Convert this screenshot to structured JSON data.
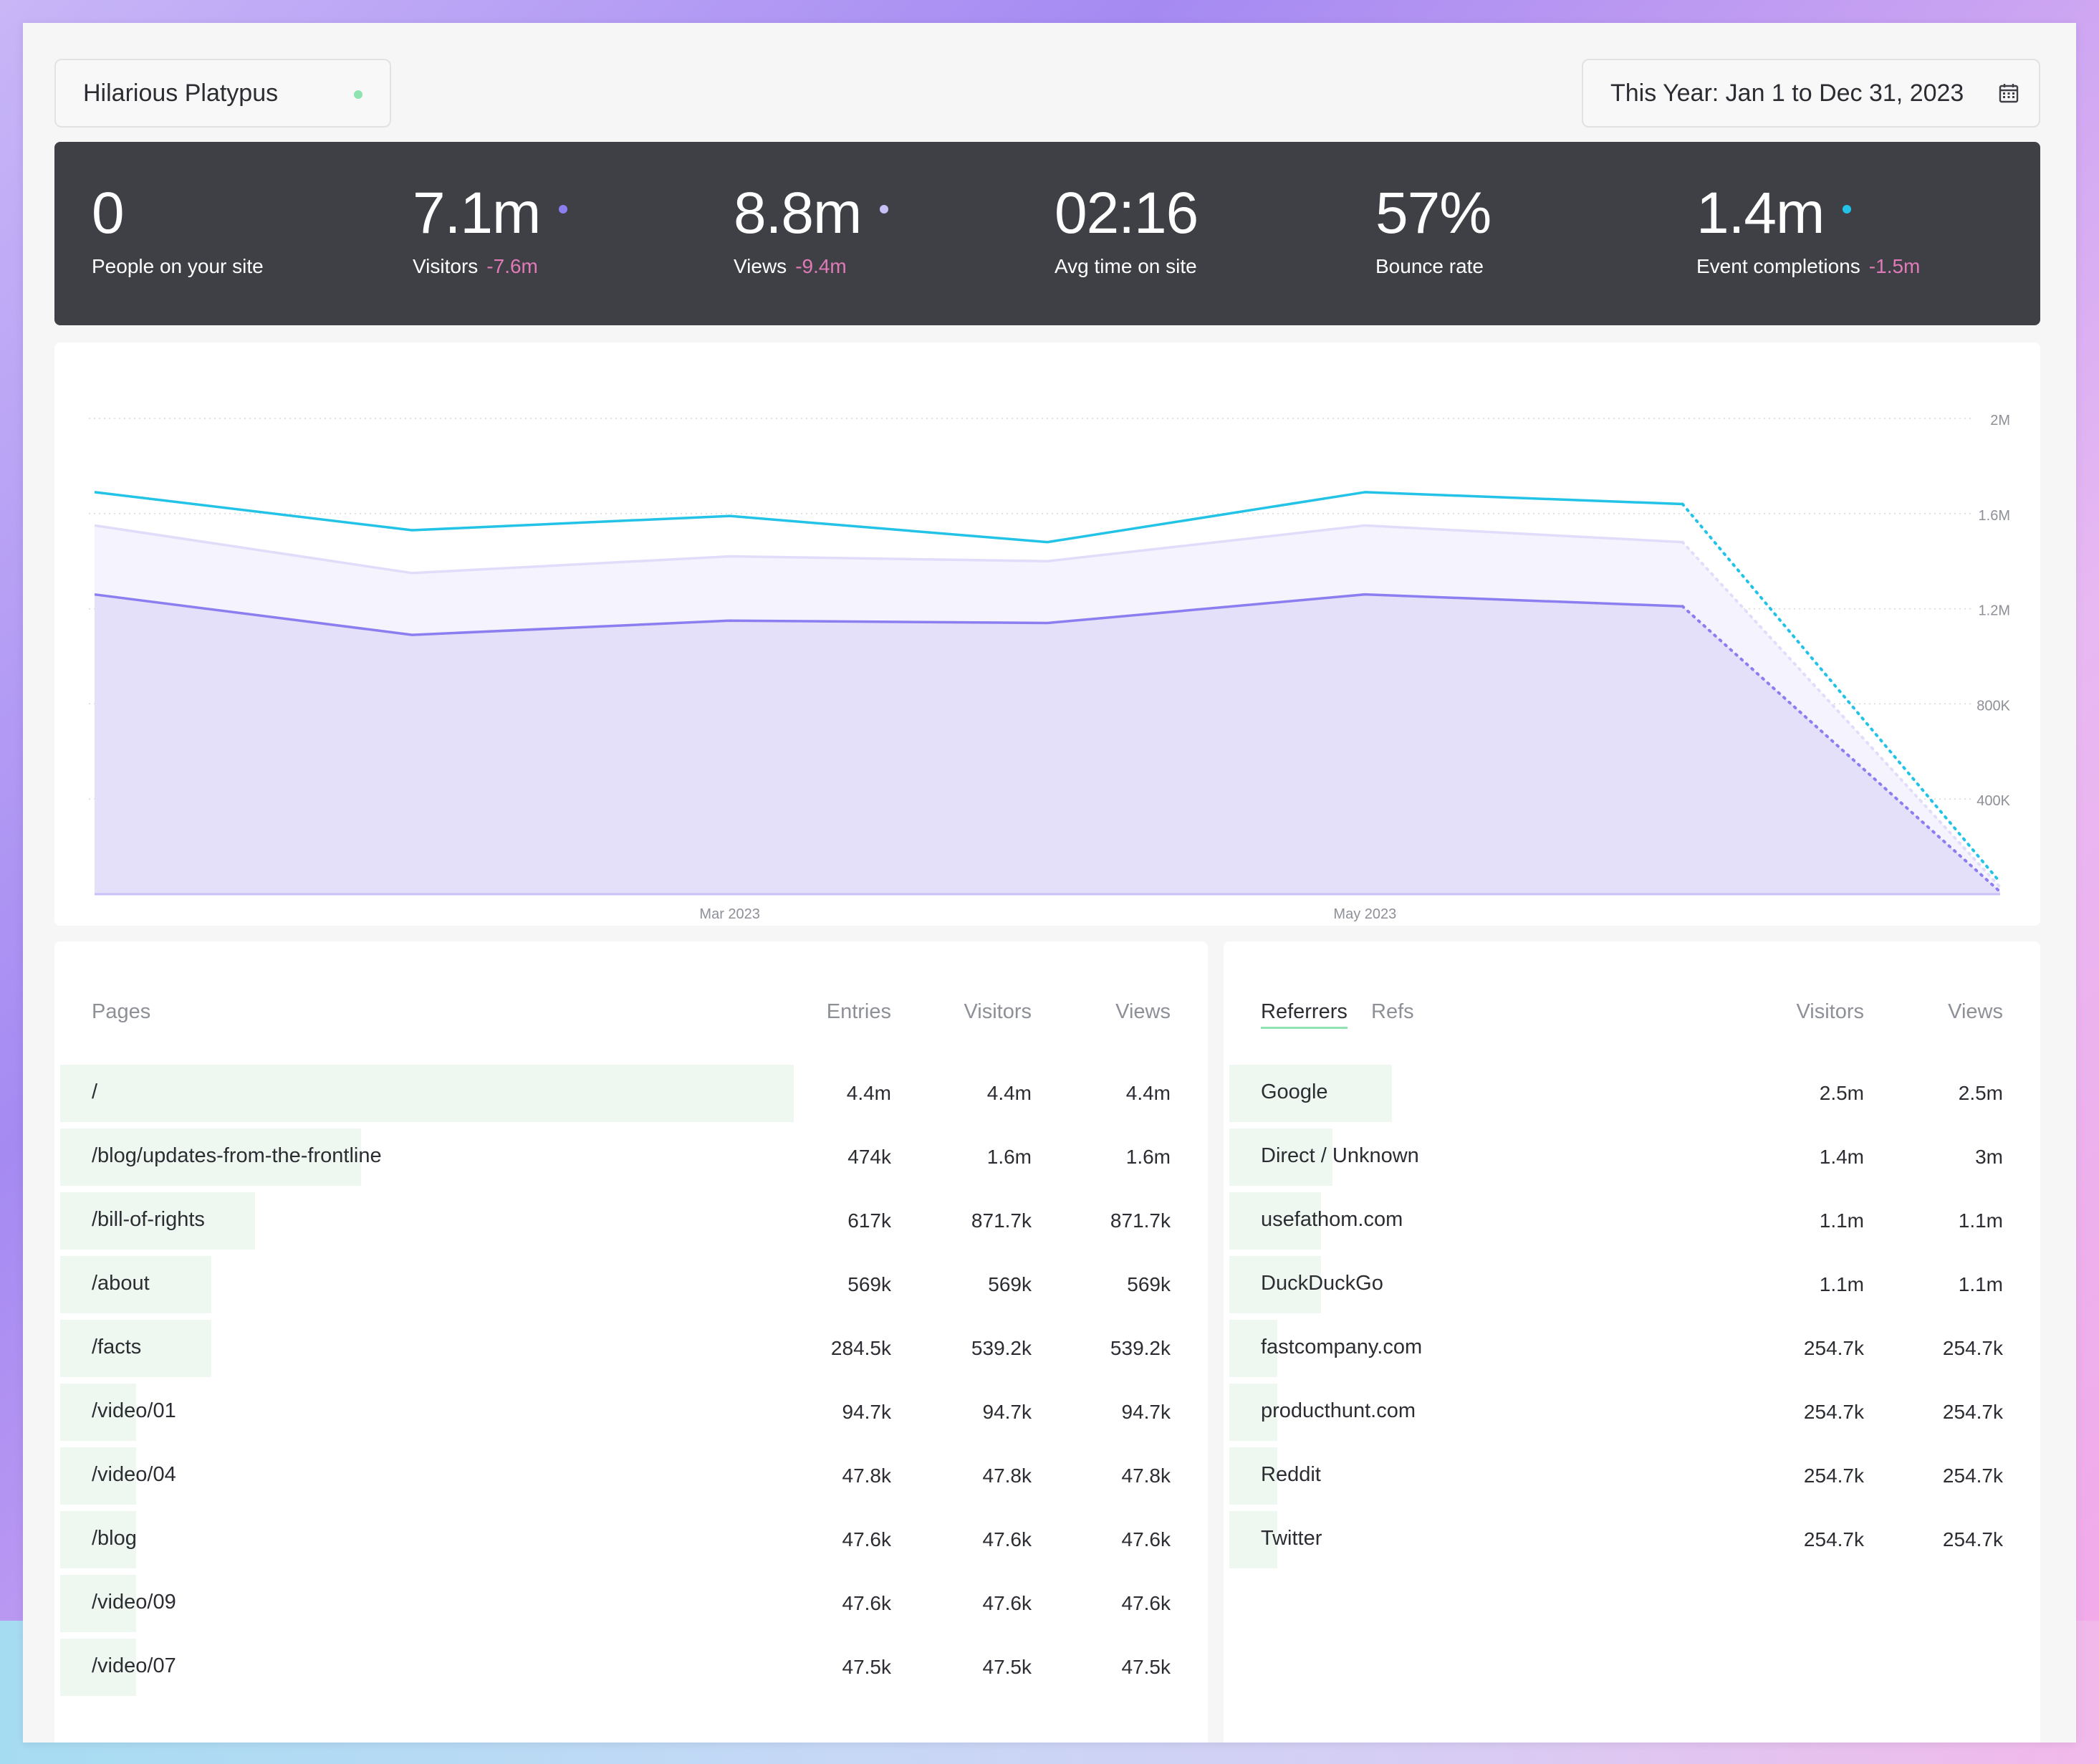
{
  "site_selector": {
    "name": "Hilarious Platypus",
    "status_color": "#8fe3b1"
  },
  "date_range": {
    "label": "This Year: Jan 1 to Dec 31, 2023",
    "icon": "calendar-icon"
  },
  "stats": [
    {
      "value": "0",
      "label": "People on your site",
      "change": "",
      "dot_color": ""
    },
    {
      "value": "7.1m",
      "label": "Visitors",
      "change": "-7.6m",
      "dot_color": "#8b7ef0"
    },
    {
      "value": "8.8m",
      "label": "Views",
      "change": "-9.4m",
      "dot_color": "#c9c0f8"
    },
    {
      "value": "02:16",
      "label": "Avg time on site",
      "change": "",
      "dot_color": ""
    },
    {
      "value": "57%",
      "label": "Bounce rate",
      "change": "",
      "dot_color": ""
    },
    {
      "value": "1.4m",
      "label": "Event completions",
      "change": "-1.5m",
      "dot_color": "#22c3e6"
    }
  ],
  "chart_data": {
    "type": "line",
    "x_tick_labels": [
      "Mar 2023",
      "May 2023"
    ],
    "y_ticks": [
      "2M",
      "1.6M",
      "1.2M",
      "800K",
      "400K"
    ],
    "ylim": [
      0,
      2000000
    ],
    "x": [
      "Jan 2023",
      "Feb 2023",
      "Mar 2023",
      "Apr 2023",
      "May 2023",
      "Jun 2023",
      "Jul 2023"
    ],
    "grid": true,
    "series": [
      {
        "values": [
          1690000,
          1530000,
          1590000,
          1480000,
          1690000,
          1640000,
          50000
        ],
        "color": "#22c3e6",
        "fill": false,
        "last_segment_dotted": true
      },
      {
        "values": [
          1550000,
          1350000,
          1420000,
          1400000,
          1550000,
          1480000,
          30000
        ],
        "color": "#e2dcfa",
        "fill": "#f5f3fd",
        "last_segment_dotted": true
      },
      {
        "values": [
          1260000,
          1090000,
          1150000,
          1140000,
          1260000,
          1210000,
          10000
        ],
        "color": "#8b7ef0",
        "fill": "#e4e0f9",
        "last_segment_dotted": true
      }
    ]
  },
  "pages": {
    "title": "Pages",
    "columns": [
      "Entries",
      "Visitors",
      "Views"
    ],
    "rows": [
      {
        "label": "/",
        "entries": "4.4m",
        "visitors": "4.4m",
        "views": "4.4m",
        "share": 1.0
      },
      {
        "label": "/blog/updates-from-the-frontline",
        "entries": "474k",
        "visitors": "1.6m",
        "views": "1.6m",
        "share": 0.41
      },
      {
        "label": "/bill-of-rights",
        "entries": "617k",
        "visitors": "871.7k",
        "views": "871.7k",
        "share": 0.266
      },
      {
        "label": "/about",
        "entries": "569k",
        "visitors": "569k",
        "views": "569k",
        "share": 0.206
      },
      {
        "label": "/facts",
        "entries": "284.5k",
        "visitors": "539.2k",
        "views": "539.2k",
        "share": 0.206
      },
      {
        "label": "/video/01",
        "entries": "94.7k",
        "visitors": "94.7k",
        "views": "94.7k",
        "share": 0.104
      },
      {
        "label": "/video/04",
        "entries": "47.8k",
        "visitors": "47.8k",
        "views": "47.8k",
        "share": 0.104
      },
      {
        "label": "/blog",
        "entries": "47.6k",
        "visitors": "47.6k",
        "views": "47.6k",
        "share": 0.104
      },
      {
        "label": "/video/09",
        "entries": "47.6k",
        "visitors": "47.6k",
        "views": "47.6k",
        "share": 0.104
      },
      {
        "label": "/video/07",
        "entries": "47.5k",
        "visitors": "47.5k",
        "views": "47.5k",
        "share": 0.104
      }
    ]
  },
  "referrers": {
    "tabs": [
      "Referrers",
      "Refs"
    ],
    "columns": [
      "Visitors",
      "Views"
    ],
    "rows": [
      {
        "label": "Google",
        "visitors": "2.5m",
        "views": "2.5m",
        "share": 0.218
      },
      {
        "label": "Direct / Unknown",
        "visitors": "1.4m",
        "views": "3m",
        "share": 0.138
      },
      {
        "label": "usefathom.com",
        "visitors": "1.1m",
        "views": "1.1m",
        "share": 0.123
      },
      {
        "label": "DuckDuckGo",
        "visitors": "1.1m",
        "views": "1.1m",
        "share": 0.123
      },
      {
        "label": "fastcompany.com",
        "visitors": "254.7k",
        "views": "254.7k",
        "share": 0.064
      },
      {
        "label": "producthunt.com",
        "visitors": "254.7k",
        "views": "254.7k",
        "share": 0.064
      },
      {
        "label": "Reddit",
        "visitors": "254.7k",
        "views": "254.7k",
        "share": 0.064
      },
      {
        "label": "Twitter",
        "visitors": "254.7k",
        "views": "254.7k",
        "share": 0.064
      }
    ]
  }
}
